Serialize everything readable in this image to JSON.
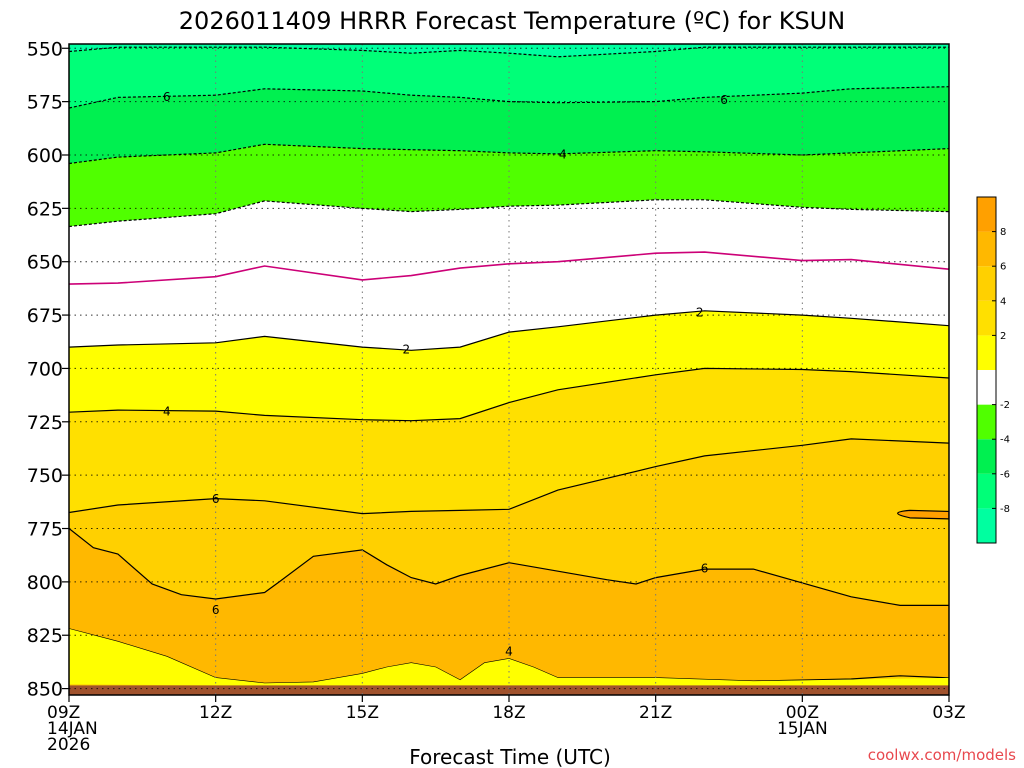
{
  "chart_data": {
    "type": "contour",
    "title": "2026011409 HRRR Forecast Temperature (ºC) for KSUN",
    "xlabel": "Forecast Time (UTC)",
    "ylabel": "",
    "x_ticks": [
      {
        "hour": 0,
        "lines": [
          "09Z",
          "14JAN",
          "2026"
        ]
      },
      {
        "hour": 3,
        "lines": [
          "12Z"
        ]
      },
      {
        "hour": 6,
        "lines": [
          "15Z"
        ]
      },
      {
        "hour": 9,
        "lines": [
          "18Z"
        ]
      },
      {
        "hour": 12,
        "lines": [
          "21Z"
        ]
      },
      {
        "hour": 15,
        "lines": [
          "00Z",
          "15JAN"
        ]
      },
      {
        "hour": 18,
        "lines": [
          "03Z"
        ]
      }
    ],
    "xlim": [
      0,
      18
    ],
    "y_ticks": [
      550,
      575,
      600,
      625,
      650,
      675,
      700,
      725,
      750,
      775,
      800,
      825,
      850
    ],
    "ylim": [
      548,
      853
    ],
    "y_direction": "pressure decreasing upward (hPa)",
    "grid": true,
    "ground_color": "#a0522d",
    "colorbar": {
      "placement": "right",
      "bins": [
        {
          "color": "#00ffa0"
        },
        {
          "color": "#00ff78"
        },
        {
          "color": "#00f050"
        },
        {
          "color": "#50ff00"
        },
        {
          "color": "#ffffff"
        },
        {
          "color": "#ffff00"
        },
        {
          "color": "#ffe000"
        },
        {
          "color": "#ffd000"
        },
        {
          "color": "#ffb800"
        },
        {
          "color": "#ffa000"
        }
      ],
      "tick_labels": [
        "-8",
        "-6",
        "-4",
        "-2",
        "2",
        "4",
        "6",
        "8"
      ]
    },
    "x_samples": [
      0,
      1,
      3,
      4,
      6,
      7,
      8,
      9,
      10,
      12,
      13,
      15,
      16,
      18
    ],
    "isotherms": [
      {
        "value": -8,
        "style": "dashed",
        "color": "#000000",
        "p": [
          551.5,
          549.5,
          549.5,
          549.5,
          551,
          552.3,
          551,
          552.3,
          554,
          551.5,
          549.5,
          549.5,
          549.5,
          549.5
        ]
      },
      {
        "value": -6,
        "style": "dashed",
        "color": "#000000",
        "p": [
          578,
          573,
          572,
          569,
          570,
          572,
          573,
          575,
          575.5,
          575,
          573,
          571,
          569,
          568
        ]
      },
      {
        "value": -4,
        "style": "dashed",
        "color": "#000000",
        "p": [
          604,
          601,
          599,
          595,
          597,
          597.5,
          598,
          599,
          599.5,
          598,
          598.5,
          600,
          599,
          597
        ]
      },
      {
        "value": -2,
        "style": "dashed",
        "color": "#000000",
        "p": [
          633.5,
          631,
          627.5,
          621.5,
          625,
          626.5,
          625.5,
          624,
          623.5,
          621,
          621,
          624.5,
          625.5,
          626.5
        ]
      },
      {
        "value": 0,
        "style": "solid",
        "color": "#cc0077",
        "p": [
          660.5,
          660,
          657,
          652,
          658.5,
          656.5,
          653,
          651,
          650,
          646,
          645.5,
          649.5,
          649,
          653.5
        ]
      },
      {
        "value": 2,
        "style": "solid",
        "color": "#000000",
        "p": [
          690,
          689,
          688,
          685,
          690,
          691.5,
          690,
          683,
          680.5,
          675,
          673,
          675,
          676.5,
          680
        ]
      },
      {
        "value": 4,
        "style": "solid",
        "color": "#000000",
        "p": [
          720.5,
          719.5,
          720,
          722,
          724,
          724.5,
          723.5,
          716,
          710,
          703,
          700,
          700.5,
          701.5,
          704.5
        ]
      },
      {
        "value": 6,
        "style": "solid",
        "color": "#000000",
        "p": [
          767.5,
          764,
          761,
          762,
          768,
          767,
          766.5,
          766,
          757,
          746,
          741,
          736,
          733,
          735
        ]
      }
    ],
    "contour_labels": [
      {
        "text": "6",
        "hour": 2,
        "p": 572.5
      },
      {
        "text": "6",
        "hour": 13.4,
        "p": 574
      },
      {
        "text": "4",
        "hour": 10.1,
        "p": 599.5
      },
      {
        "text": "2",
        "hour": 6.9,
        "p": 691
      },
      {
        "text": "2",
        "hour": 12.9,
        "p": 673.5
      },
      {
        "text": "4",
        "hour": 2,
        "p": 720
      },
      {
        "text": "6",
        "hour": 3,
        "p": 761
      },
      {
        "text": "6",
        "hour": 3,
        "p": 813
      },
      {
        "text": "6",
        "hour": 13,
        "p": 793.5
      },
      {
        "text": "4",
        "hour": 9,
        "p": 832.5
      }
    ]
  },
  "footer": {
    "credit": "coolwx.com/models",
    "credit_color": "#e8484e"
  }
}
